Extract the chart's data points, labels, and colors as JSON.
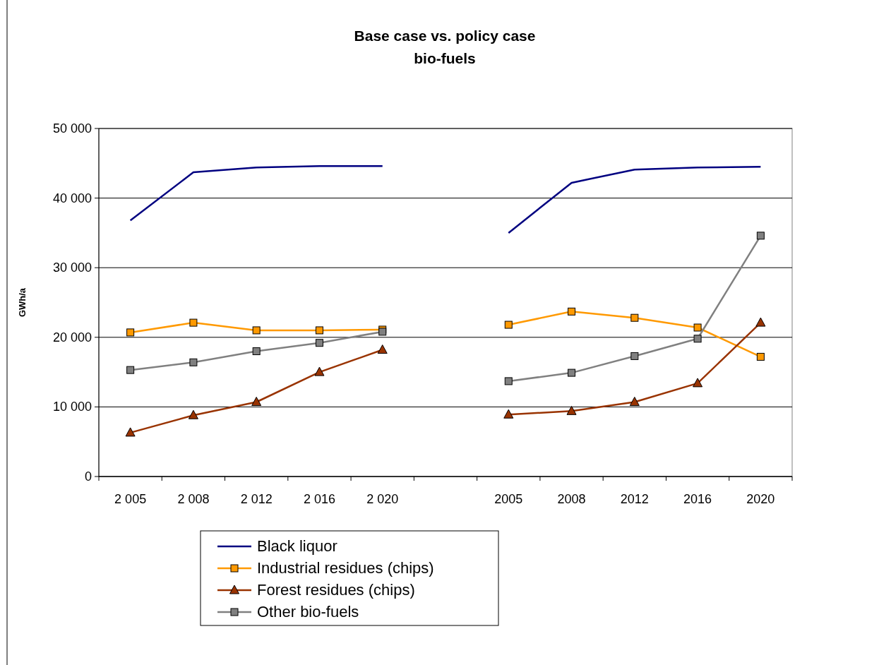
{
  "chart_data": {
    "type": "line",
    "title": "Base case vs. policy case\nbio-fuels",
    "ylabel": "GWh/a",
    "categories": [
      "2 005",
      "2 008",
      "2 012",
      "2 016",
      "2 020",
      null,
      "2005",
      "2008",
      "2012",
      "2016",
      "2020"
    ],
    "series": [
      {
        "name": "Black liquor",
        "color": "#000080",
        "marker": "none",
        "values": [
          36800,
          43700,
          44400,
          44600,
          44600,
          null,
          35000,
          42200,
          44100,
          44400,
          44500
        ]
      },
      {
        "name": "Industrial residues (chips)",
        "color": "#ff9900",
        "marker": "square",
        "values": [
          20700,
          22100,
          21000,
          21000,
          21100,
          null,
          21800,
          23700,
          22800,
          21400,
          17200
        ]
      },
      {
        "name": "Forest residues (chips)",
        "color": "#993300",
        "marker": "triangle",
        "values": [
          6300,
          8800,
          10700,
          15000,
          18200,
          null,
          8900,
          9400,
          10700,
          13400,
          22100
        ]
      },
      {
        "name": "Other bio-fuels",
        "color": "#808080",
        "marker": "square",
        "values": [
          15300,
          16400,
          18000,
          19200,
          20800,
          null,
          13700,
          14900,
          17300,
          19800,
          34600
        ]
      }
    ],
    "ylim": [
      0,
      50000
    ],
    "yticks": [
      0,
      {
        "value": 10000,
        "label": "10 000"
      },
      {
        "value": 20000,
        "label": "20 000"
      },
      {
        "value": 30000,
        "label": "30 000"
      },
      {
        "value": 40000,
        "label": "40 000"
      },
      {
        "value": 50000,
        "label": "50 000"
      }
    ],
    "grid": "y",
    "legend": "bottom",
    "line_style": "solid"
  }
}
